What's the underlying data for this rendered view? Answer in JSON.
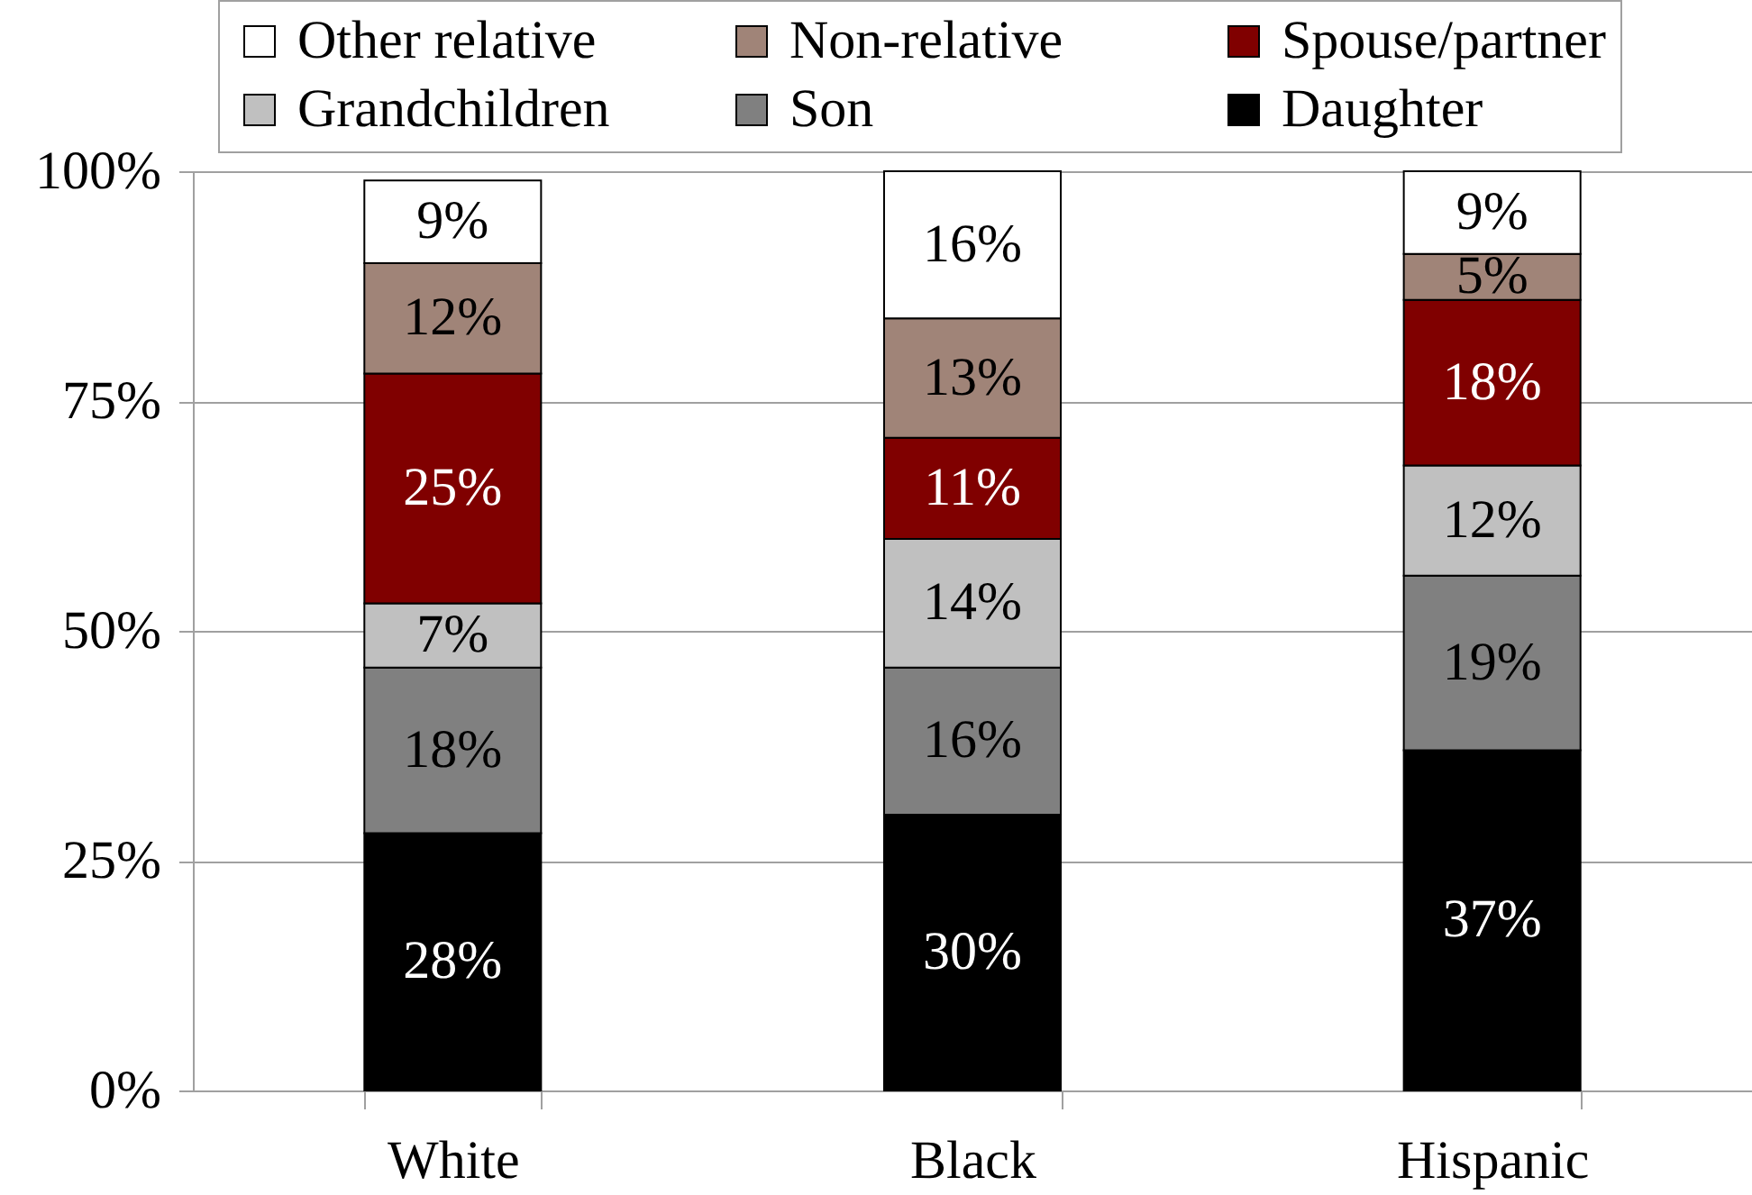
{
  "chart_data": {
    "type": "bar",
    "stacked": true,
    "categories": [
      "White",
      "Black",
      "Hispanic"
    ],
    "series": [
      {
        "name": "Daughter",
        "color": "#000000",
        "values": [
          28,
          30,
          37
        ],
        "value_labels": [
          "28%",
          "30%",
          "37%"
        ]
      },
      {
        "name": "Son",
        "color": "#808080",
        "values": [
          18,
          16,
          19
        ],
        "value_labels": [
          "18%",
          "16%",
          "19%"
        ]
      },
      {
        "name": "Grandchildren",
        "color": "#c0c0c0",
        "values": [
          7,
          14,
          12
        ],
        "value_labels": [
          "7%",
          "14%",
          "12%"
        ]
      },
      {
        "name": "Spouse/partner",
        "color": "#800000",
        "values": [
          25,
          11,
          18
        ],
        "value_labels": [
          "25%",
          "11%",
          "18%"
        ]
      },
      {
        "name": "Non-relative",
        "color": "#a08478",
        "values": [
          12,
          13,
          5
        ],
        "value_labels": [
          "12%",
          "13%",
          "5%"
        ]
      },
      {
        "name": "Other relative",
        "color": "#ffffff",
        "values": [
          9,
          16,
          9
        ],
        "value_labels": [
          "9%",
          "16%",
          "9%"
        ]
      }
    ],
    "ylim": [
      0,
      100
    ],
    "yticks": [
      {
        "value": 0,
        "label": "0%"
      },
      {
        "value": 25,
        "label": "25%"
      },
      {
        "value": 50,
        "label": "50%"
      },
      {
        "value": 75,
        "label": "75%"
      },
      {
        "value": 100,
        "label": "100%"
      }
    ],
    "grid": "y",
    "legend": "top"
  }
}
